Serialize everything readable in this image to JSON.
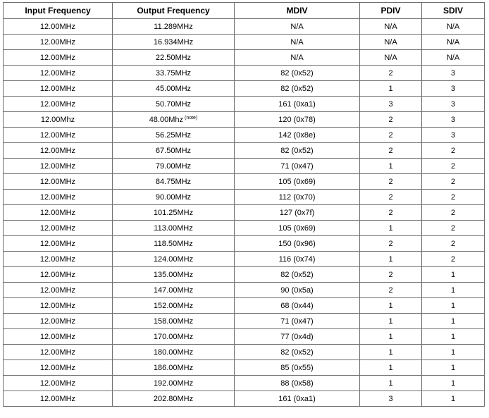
{
  "table": {
    "headers": [
      "Input Frequency",
      "Output Frequency",
      "MDIV",
      "PDIV",
      "SDIV"
    ],
    "rows": [
      {
        "input": "12.00MHz",
        "output": "11.289MHz",
        "note": "",
        "mdiv": "N/A",
        "pdiv": "N/A",
        "sdiv": "N/A"
      },
      {
        "input": "12.00MHz",
        "output": "16.934MHz",
        "note": "",
        "mdiv": "N/A",
        "pdiv": "N/A",
        "sdiv": "N/A"
      },
      {
        "input": "12.00MHz",
        "output": "22.50MHz",
        "note": "",
        "mdiv": "N/A",
        "pdiv": "N/A",
        "sdiv": "N/A"
      },
      {
        "input": "12.00MHz",
        "output": "33.75MHz",
        "note": "",
        "mdiv": "82 (0x52)",
        "pdiv": "2",
        "sdiv": "3"
      },
      {
        "input": "12.00MHz",
        "output": "45.00MHz",
        "note": "",
        "mdiv": "82 (0x52)",
        "pdiv": "1",
        "sdiv": "3"
      },
      {
        "input": "12.00MHz",
        "output": "50.70MHz",
        "note": "",
        "mdiv": "161 (0xa1)",
        "pdiv": "3",
        "sdiv": "3"
      },
      {
        "input": "12.00Mhz",
        "output": "48.00Mhz",
        "note": "(note)",
        "mdiv": "120 (0x78)",
        "pdiv": "2",
        "sdiv": "3"
      },
      {
        "input": "12.00MHz",
        "output": "56.25MHz",
        "note": "",
        "mdiv": "142 (0x8e)",
        "pdiv": "2",
        "sdiv": "3"
      },
      {
        "input": "12.00MHz",
        "output": "67.50MHz",
        "note": "",
        "mdiv": "82 (0x52)",
        "pdiv": "2",
        "sdiv": "2"
      },
      {
        "input": "12.00MHz",
        "output": "79.00MHz",
        "note": "",
        "mdiv": "71 (0x47)",
        "pdiv": "1",
        "sdiv": "2"
      },
      {
        "input": "12.00MHz",
        "output": "84.75MHz",
        "note": "",
        "mdiv": "105 (0x69)",
        "pdiv": "2",
        "sdiv": "2"
      },
      {
        "input": "12.00MHz",
        "output": "90.00MHz",
        "note": "",
        "mdiv": "112 (0x70)",
        "pdiv": "2",
        "sdiv": "2"
      },
      {
        "input": "12.00MHz",
        "output": "101.25MHz",
        "note": "",
        "mdiv": "127 (0x7f)",
        "pdiv": "2",
        "sdiv": "2"
      },
      {
        "input": "12.00MHz",
        "output": "113.00MHz",
        "note": "",
        "mdiv": "105 (0x69)",
        "pdiv": "1",
        "sdiv": "2"
      },
      {
        "input": "12.00MHz",
        "output": "118.50MHz",
        "note": "",
        "mdiv": "150 (0x96)",
        "pdiv": "2",
        "sdiv": "2"
      },
      {
        "input": "12.00MHz",
        "output": "124.00MHz",
        "note": "",
        "mdiv": "116 (0x74)",
        "pdiv": "1",
        "sdiv": "2"
      },
      {
        "input": "12.00MHz",
        "output": "135.00MHz",
        "note": "",
        "mdiv": "82 (0x52)",
        "pdiv": "2",
        "sdiv": "1"
      },
      {
        "input": "12.00MHz",
        "output": "147.00MHz",
        "note": "",
        "mdiv": "90 (0x5a)",
        "pdiv": "2",
        "sdiv": "1"
      },
      {
        "input": "12.00MHz",
        "output": "152.00MHz",
        "note": "",
        "mdiv": "68 (0x44)",
        "pdiv": "1",
        "sdiv": "1"
      },
      {
        "input": "12.00MHz",
        "output": "158.00MHz",
        "note": "",
        "mdiv": "71 (0x47)",
        "pdiv": "1",
        "sdiv": "1"
      },
      {
        "input": "12.00MHz",
        "output": "170.00MHz",
        "note": "",
        "mdiv": "77 (0x4d)",
        "pdiv": "1",
        "sdiv": "1"
      },
      {
        "input": "12.00MHz",
        "output": "180.00MHz",
        "note": "",
        "mdiv": "82 (0x52)",
        "pdiv": "1",
        "sdiv": "1"
      },
      {
        "input": "12.00MHz",
        "output": "186.00MHz",
        "note": "",
        "mdiv": "85 (0x55)",
        "pdiv": "1",
        "sdiv": "1"
      },
      {
        "input": "12.00MHz",
        "output": "192.00MHz",
        "note": "",
        "mdiv": "88 (0x58)",
        "pdiv": "1",
        "sdiv": "1"
      },
      {
        "input": "12.00MHz",
        "output": "202.80MHz",
        "note": "",
        "mdiv": "161 (0xa1)",
        "pdiv": "3",
        "sdiv": "1"
      }
    ]
  }
}
